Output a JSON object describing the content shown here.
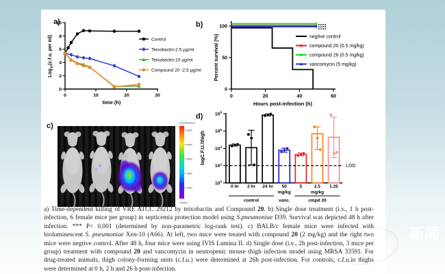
{
  "figure": {
    "panel_labels": {
      "a": "a)",
      "b": "b)",
      "c": "c)",
      "d": "d)"
    }
  },
  "watermark": {
    "cn": "新闻",
    "en": "NEWS"
  },
  "chart_data": [
    {
      "id": "panel-a",
      "type": "line",
      "xlabel": "time (h)",
      "ylabel": "Log10(c.f.u. per ml)",
      "xlim": [
        0,
        30
      ],
      "ylim": [
        0,
        10
      ],
      "xticks": [
        0,
        10,
        20,
        30
      ],
      "yticks": [
        0,
        2,
        4,
        6,
        8,
        10
      ],
      "legend_position": "right-inside",
      "series": [
        {
          "name": "Control",
          "color": "#000000",
          "marker": "circle",
          "x": [
            0,
            1,
            2,
            4,
            6,
            8,
            16,
            24
          ],
          "y": [
            5.4,
            6.2,
            7.0,
            8.3,
            8.8,
            8.75,
            8.7,
            8.7
          ]
        },
        {
          "name": "Teixobactin-2.5 μg/ml",
          "color": "#2a3cd4",
          "marker": "diamond",
          "x": [
            0,
            2,
            4,
            6,
            8,
            16,
            24
          ],
          "y": [
            5.4,
            5.15,
            4.85,
            4.7,
            4.6,
            3.5,
            1.9
          ]
        },
        {
          "name": "Teixobactin-10 μg/ml",
          "color": "#38b23a",
          "marker": "triangle",
          "x": [
            0,
            2,
            4,
            6,
            8,
            16,
            24
          ],
          "y": [
            5.4,
            4.4,
            3.9,
            3.7,
            3.3,
            0.4,
            0.45
          ]
        },
        {
          "name": "Compound 20 -2.5 μg/ml",
          "color": "#f58220",
          "marker": "diamond",
          "x": [
            0,
            2,
            4,
            6,
            8,
            16,
            24
          ],
          "y": [
            5.4,
            4.35,
            3.85,
            3.5,
            3.3,
            0.35,
            0.7
          ]
        }
      ]
    },
    {
      "id": "panel-b",
      "type": "step",
      "xlabel": "Hours post-infection (h)",
      "ylabel": "Percent survival (%)",
      "xlim": [
        0,
        60
      ],
      "ylim": [
        0,
        110
      ],
      "xticks": [
        0,
        20,
        40,
        60
      ],
      "yticks": [
        0,
        50,
        100
      ],
      "legend_position": "right-inside",
      "series": [
        {
          "name": "negtive control",
          "color": "#000000",
          "points": [
            [
              0,
              97
            ],
            [
              24,
              97
            ],
            [
              24,
              65
            ],
            [
              36,
              65
            ],
            [
              36,
              31
            ],
            [
              48,
              31
            ],
            [
              48,
              0
            ]
          ]
        },
        {
          "name": "compound 20 (0.5 mg/kg)",
          "color": "#e81e25",
          "points": [
            [
              0,
              100.5
            ],
            [
              50,
              100.5
            ]
          ]
        },
        {
          "name": "compound 26 (0.5 mg/kg)",
          "color": "#1ed41e",
          "points": [
            [
              0,
              103.5
            ],
            [
              50,
              103.5
            ]
          ]
        },
        {
          "name": "vancomycin (5 mg/kg)",
          "color": "#2a2ad4",
          "points": [
            [
              0,
              99
            ],
            [
              50,
              99
            ]
          ]
        }
      ]
    },
    {
      "id": "panel-d",
      "type": "bar-scatter",
      "ylabel": "logC.F.U./thigh",
      "yscale": "log",
      "ytick_exponents": [
        0,
        2,
        4,
        6,
        8
      ],
      "lod": {
        "value": 100,
        "label": "LOD"
      },
      "bars": [
        {
          "label": "0 hr",
          "color": "#000000",
          "top": 23000,
          "err": [
            18000,
            32000
          ],
          "points": [
            19000,
            23000,
            28000
          ]
        },
        {
          "label": "2 hr",
          "color": "#000000",
          "top": 12000,
          "err": [
            120,
            1200000
          ],
          "points": [
            400000,
            150000,
            120
          ]
        },
        {
          "label": "24 hr",
          "color": "#000000",
          "top": 70000000,
          "err": [
            55000000,
            95000000
          ],
          "points": [
            60000000,
            75000000,
            90000000
          ]
        },
        {
          "label": "50",
          "color": "#2222cc",
          "top": 6000,
          "err": [
            3500,
            10500
          ],
          "points": [
            4000,
            6000,
            9500
          ]
        },
        {
          "label": "5",
          "color": "#e81e25",
          "top": 1900,
          "err": [
            1400,
            2900
          ],
          "points": [
            1500,
            2000,
            2600
          ]
        },
        {
          "label": "2.5",
          "color": "#f58220",
          "top": 480000,
          "err": [
            7000,
            3000000
          ],
          "points": [
            3000000,
            150000,
            7000
          ]
        },
        {
          "label": "1.25",
          "color": "#f78f8f",
          "top": 190000,
          "err": [
            800,
            40000000
          ],
          "points": [
            70000000,
            2500,
            3500
          ]
        }
      ],
      "groups": [
        {
          "label": "control",
          "from": 0,
          "to": 2,
          "line": true
        },
        {
          "label": "vanc.",
          "sub": "mg/kg",
          "from": 3,
          "to": 3,
          "line": false
        },
        {
          "label": "cmpd 20",
          "sub": "mg/kg",
          "from": 4,
          "to": 6,
          "line": true
        }
      ]
    }
  ],
  "panel_c": {
    "mice_count": 4,
    "colorbar": {
      "title": "Luminescence",
      "ticks": [
        "5000",
        "4000",
        "3000",
        "2000",
        "1000"
      ],
      "footer": "Counts"
    }
  },
  "caption": {
    "segments": [
      {
        "t": "a) Time-dependent killing of VRE ATCC 29212 by teixobactin and Compound "
      },
      {
        "t": "20",
        "b": true
      },
      {
        "t": ". b) Single dose treatment (i.v., 1 h post-infection, 6 female mice per group) in septicemia protection model using "
      },
      {
        "t": "S.pneumoniae",
        "i": true
      },
      {
        "t": " D39. Survival was depicted 48 h after infection. *** P< 0.001 (determined by non-parametric log-rank test). c) BALB/c female mice were infected with bioluminescent "
      },
      {
        "t": "S. pneumoniae",
        "i": true
      },
      {
        "t": " Xen-10 (A66). At left, two mice were treated with compound "
      },
      {
        "t": "20",
        "b": true
      },
      {
        "t": " (2 mg/kg) and the right two mice were negtive control. After 48 h, four mice were using IVIS Lumina II. d) Single dose (i.v., 2h post-infection, 3 mice per group) treatment with compound "
      },
      {
        "t": "20",
        "b": true
      },
      {
        "t": " and vancomycin in neutropenic mouse thigh infection model using MRSA 33591. For drug-treated animals, thigh colony-forming units (c.f.u.) were determined at 26h post-infection. For controls, c.f.u.in thighs were determined at 0 h, 2 h and 26 h post-infection."
      }
    ]
  }
}
